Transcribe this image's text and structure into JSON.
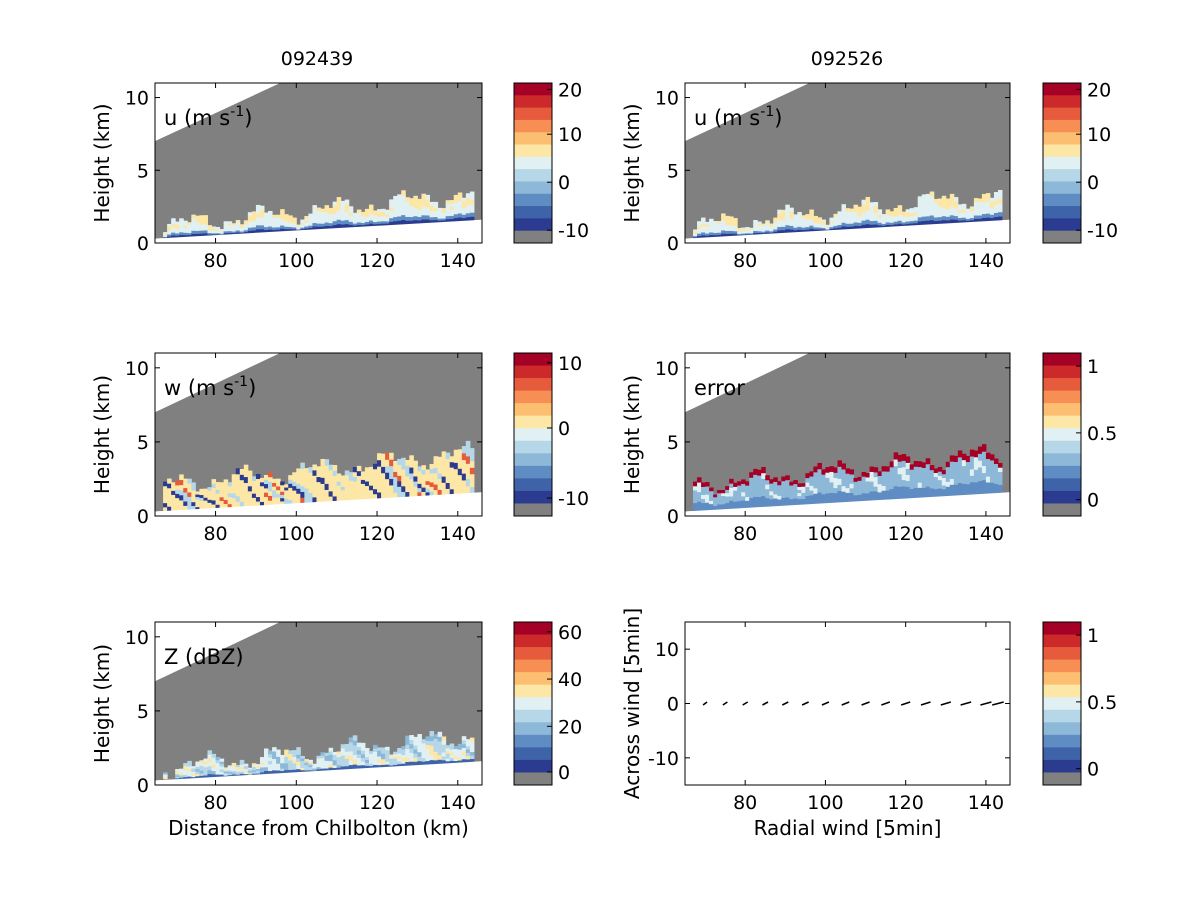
{
  "figure": {
    "col_titles": [
      "092439",
      "092526"
    ]
  },
  "palette": {
    "gray": "#808080",
    "levels": [
      "#2b3b8f",
      "#3e63a9",
      "#5f8cc2",
      "#8db8d8",
      "#b6d7e7",
      "#e1f0f3",
      "#fde7a6",
      "#fcbf72",
      "#f78f54",
      "#e65b3c",
      "#cc2a2a",
      "#a50026"
    ]
  },
  "chart_data": [
    {
      "id": "u-092439",
      "type": "heatmap",
      "annotation": "u (m s",
      "annotation_sup": "-1",
      "annotation_close": ")",
      "ylabel": "Height (km)",
      "xlabel": "",
      "xlim": [
        65,
        146
      ],
      "ylim": [
        0,
        11
      ],
      "xticks": [
        "80",
        "100",
        "120",
        "140"
      ],
      "yticks": [
        "0",
        "5",
        "10"
      ],
      "colorbar": {
        "ticks": [
          "20",
          "10",
          "0",
          "-10"
        ]
      }
    },
    {
      "id": "u-092526",
      "type": "heatmap",
      "annotation": "u (m s",
      "annotation_sup": "-1",
      "annotation_close": ")",
      "ylabel": "Height (km)",
      "xlabel": "",
      "xlim": [
        65,
        146
      ],
      "ylim": [
        0,
        11
      ],
      "xticks": [
        "80",
        "100",
        "120",
        "140"
      ],
      "yticks": [
        "0",
        "5",
        "10"
      ],
      "colorbar": {
        "ticks": [
          "20",
          "10",
          "0",
          "-10"
        ]
      }
    },
    {
      "id": "w-092439",
      "type": "heatmap",
      "annotation": "w (m s",
      "annotation_sup": "-1",
      "annotation_close": ")",
      "ylabel": "Height (km)",
      "xlabel": "",
      "xlim": [
        65,
        146
      ],
      "ylim": [
        0,
        11
      ],
      "xticks": [
        "80",
        "100",
        "120",
        "140"
      ],
      "yticks": [
        "0",
        "5",
        "10"
      ],
      "colorbar": {
        "ticks": [
          "10",
          "0",
          "-10"
        ]
      }
    },
    {
      "id": "error-092526",
      "type": "heatmap",
      "annotation": "error",
      "annotation_sup": "",
      "annotation_close": "",
      "ylabel": "Height (km)",
      "xlabel": "",
      "xlim": [
        65,
        146
      ],
      "ylim": [
        0,
        11
      ],
      "xticks": [
        "80",
        "100",
        "120",
        "140"
      ],
      "yticks": [
        "0",
        "5",
        "10"
      ],
      "colorbar": {
        "ticks": [
          "1",
          "0.5",
          "0"
        ]
      }
    },
    {
      "id": "z-092439",
      "type": "heatmap",
      "annotation": "Z (dBZ)",
      "annotation_sup": "",
      "annotation_close": "",
      "ylabel": "Height (km)",
      "xlabel": "Distance from Chilbolton (km)",
      "xlim": [
        65,
        146
      ],
      "ylim": [
        0,
        11
      ],
      "xticks": [
        "80",
        "100",
        "120",
        "140"
      ],
      "yticks": [
        "0",
        "5",
        "10"
      ],
      "colorbar": {
        "ticks": [
          "60",
          "40",
          "20",
          "0"
        ]
      }
    },
    {
      "id": "wind-092526",
      "type": "scatter",
      "annotation": "",
      "annotation_sup": "",
      "annotation_close": "",
      "ylabel": "Across wind [5min]",
      "xlabel": "Radial wind [5min]",
      "xlim": [
        65,
        146
      ],
      "ylim": [
        -15,
        15
      ],
      "xticks": [
        "80",
        "100",
        "120",
        "140"
      ],
      "yticks": [
        "-10",
        "0",
        "10"
      ],
      "x": [
        70,
        75,
        80,
        85,
        90,
        95,
        100,
        105,
        110,
        115,
        120,
        125,
        130,
        135,
        140,
        143
      ],
      "y": [
        0,
        0,
        0,
        0,
        0,
        0,
        0,
        0,
        0,
        0,
        0,
        0,
        0,
        0,
        0,
        0
      ],
      "colorbar": {
        "ticks": [
          "1",
          "0.5",
          "0"
        ]
      }
    }
  ]
}
